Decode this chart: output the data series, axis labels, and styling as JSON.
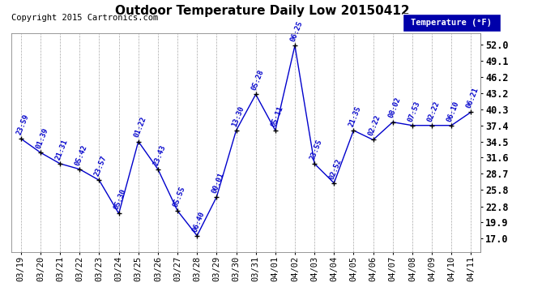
{
  "title": "Outdoor Temperature Daily Low 20150412",
  "copyright": "Copyright 2015 Cartronics.com",
  "legend_label": "Temperature (°F)",
  "background_color": "#ffffff",
  "plot_bg_color": "#ffffff",
  "line_color": "#0000cc",
  "annotation_color": "#0000cc",
  "legend_bg": "#0000aa",
  "dates": [
    "03/19",
    "03/20",
    "03/21",
    "03/22",
    "03/23",
    "03/24",
    "03/25",
    "03/26",
    "03/27",
    "03/28",
    "03/29",
    "03/30",
    "03/31",
    "04/01",
    "04/02",
    "04/03",
    "04/04",
    "04/05",
    "04/06",
    "04/07",
    "04/08",
    "04/09",
    "04/10",
    "04/11"
  ],
  "temperatures": [
    35.0,
    32.5,
    30.5,
    29.5,
    27.5,
    21.5,
    34.5,
    29.5,
    22.0,
    17.5,
    24.5,
    36.5,
    43.0,
    36.5,
    51.8,
    30.5,
    27.0,
    36.5,
    34.8,
    38.0,
    37.4,
    37.4,
    37.4,
    39.8
  ],
  "time_labels": [
    "23:59",
    "01:39",
    "21:31",
    "05:42",
    "23:57",
    "05:30",
    "01:22",
    "23:43",
    "05:55",
    "06:40",
    "00:01",
    "13:30",
    "05:28",
    "05:11",
    "06:25",
    "23:55",
    "02:52",
    "21:35",
    "02:22",
    "08:02",
    "07:53",
    "02:22",
    "06:10",
    "06:21"
  ],
  "yticks": [
    17.0,
    19.9,
    22.8,
    25.8,
    28.7,
    31.6,
    34.5,
    37.4,
    40.3,
    43.2,
    46.2,
    49.1,
    52.0
  ],
  "ylim": [
    14.5,
    54.0
  ],
  "xlim": [
    -0.5,
    23.5
  ],
  "grid_color": "#aaaaaa",
  "title_fontsize": 11,
  "copyright_fontsize": 7.5,
  "ytick_fontsize": 8.5,
  "xtick_fontsize": 7.5,
  "annot_fontsize": 6.5
}
